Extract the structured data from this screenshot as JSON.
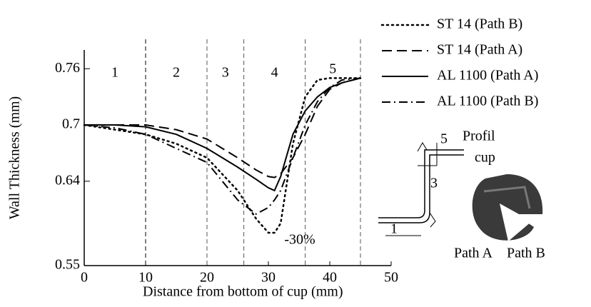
{
  "chart_data": {
    "type": "line",
    "xlabel": "Distance from bottom of cup (mm)",
    "ylabel": "Wall Thickness (mm)",
    "x": [
      0,
      5,
      10,
      15,
      20,
      25,
      28,
      30,
      31,
      32,
      34,
      36,
      38,
      40,
      42,
      45
    ],
    "series": [
      {
        "name": "ST 14 (Path B)",
        "color": "#000000",
        "dash": "dotted",
        "values": [
          0.7,
          0.695,
          0.69,
          0.68,
          0.665,
          0.63,
          0.6,
          0.585,
          0.585,
          0.595,
          0.68,
          0.73,
          0.748,
          0.75,
          0.75,
          0.75
        ]
      },
      {
        "name": "ST 14 (Path A)",
        "color": "#000000",
        "dash": "dashed",
        "values": [
          0.7,
          0.7,
          0.7,
          0.695,
          0.685,
          0.665,
          0.652,
          0.645,
          0.644,
          0.648,
          0.665,
          0.69,
          0.72,
          0.738,
          0.745,
          0.75
        ]
      },
      {
        "name": "AL 1100 (Path A)",
        "color": "#000000",
        "dash": "solid",
        "values": [
          0.7,
          0.7,
          0.698,
          0.69,
          0.675,
          0.655,
          0.642,
          0.633,
          0.63,
          0.645,
          0.69,
          0.715,
          0.73,
          0.74,
          0.745,
          0.75
        ]
      },
      {
        "name": "AL 1100 (Path B)",
        "color": "#000000",
        "dash": "dashdot",
        "values": [
          0.7,
          0.697,
          0.69,
          0.675,
          0.66,
          0.62,
          0.605,
          0.612,
          0.62,
          0.63,
          0.665,
          0.7,
          0.725,
          0.74,
          0.748,
          0.75
        ]
      }
    ],
    "xlim": [
      0,
      50
    ],
    "xticks": [
      0,
      10,
      20,
      30,
      40,
      50
    ],
    "ylim": [
      0.55,
      0.78
    ],
    "yticks": [
      0.55,
      0.64,
      0.7,
      0.76
    ],
    "regions": {
      "boundaries": [
        10,
        20,
        26,
        36,
        45
      ],
      "labels": [
        "1",
        "2",
        "3",
        "4",
        "5"
      ]
    },
    "annotation": "-30%",
    "inset": {
      "title": [
        "Profil",
        "cup"
      ],
      "profile_numbers": [
        "5",
        "3",
        "1"
      ],
      "paths": [
        "Path A",
        "Path B"
      ]
    }
  }
}
